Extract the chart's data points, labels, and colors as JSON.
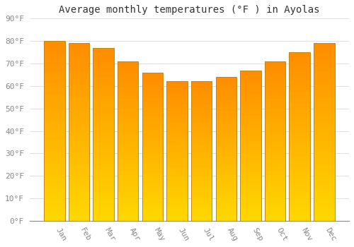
{
  "months": [
    "Jan",
    "Feb",
    "Mar",
    "Apr",
    "May",
    "Jun",
    "Jul",
    "Aug",
    "Sep",
    "Oct",
    "Nov",
    "Dec"
  ],
  "values": [
    80,
    79,
    77,
    71,
    66,
    62,
    62,
    64,
    67,
    71,
    75,
    79
  ],
  "title": "Average monthly temperatures (°F ) in Ayolas",
  "ylim": [
    0,
    90
  ],
  "yticks": [
    0,
    10,
    20,
    30,
    40,
    50,
    60,
    70,
    80,
    90
  ],
  "ytick_labels": [
    "0°F",
    "10°F",
    "20°F",
    "30°F",
    "40°F",
    "50°F",
    "60°F",
    "70°F",
    "80°F",
    "90°F"
  ],
  "bar_color_top": "#FF8C00",
  "bar_color_bottom": "#FFD700",
  "bar_edge_color": "#C8860A",
  "background_color": "#FFFFFF",
  "grid_color": "#E0E0E0",
  "title_fontsize": 10,
  "tick_fontsize": 8,
  "bar_width": 0.85
}
